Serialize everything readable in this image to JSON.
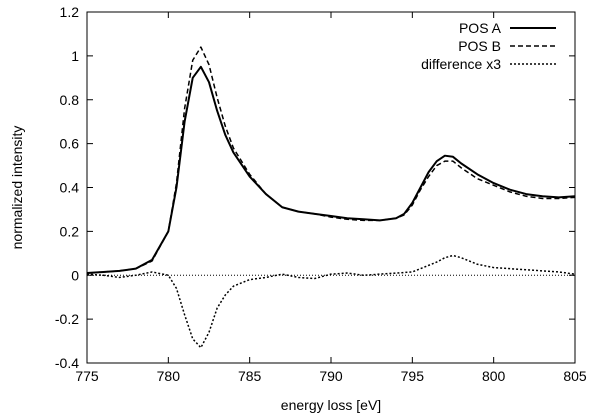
{
  "chart_data": {
    "type": "line",
    "title": "",
    "xlabel": "energy loss [eV]",
    "ylabel": "normalized intensity",
    "xlim": [
      775,
      805
    ],
    "ylim": [
      -0.4,
      1.2
    ],
    "xticks": [
      775,
      780,
      785,
      790,
      795,
      800,
      805
    ],
    "xtick_labels": [
      "775",
      "780",
      "785",
      "790",
      "795",
      "800",
      "805"
    ],
    "yticks": [
      -0.4,
      -0.2,
      0,
      0.2,
      0.4,
      0.6,
      0.8,
      1,
      1.2
    ],
    "ytick_labels": [
      "-0.4",
      "-0.2",
      "0",
      "0.2",
      "0.4",
      "0.6",
      "0.8",
      "1",
      "1.2"
    ],
    "grid": false,
    "legend_position": "top-right",
    "zero_line": true,
    "series": [
      {
        "name": "POS A",
        "style": "solid",
        "x": [
          775,
          776,
          777,
          778,
          779,
          780,
          780.5,
          781,
          781.5,
          782,
          782.5,
          783,
          783.5,
          784,
          785,
          786,
          787,
          788,
          789,
          790,
          791,
          792,
          793,
          794,
          794.5,
          795,
          795.5,
          796,
          796.5,
          797,
          797.5,
          798,
          799,
          800,
          801,
          802,
          803,
          804,
          805
        ],
        "y": [
          0.01,
          0.015,
          0.02,
          0.03,
          0.07,
          0.2,
          0.4,
          0.7,
          0.9,
          0.95,
          0.88,
          0.75,
          0.64,
          0.56,
          0.45,
          0.37,
          0.31,
          0.29,
          0.28,
          0.27,
          0.26,
          0.255,
          0.25,
          0.26,
          0.28,
          0.33,
          0.4,
          0.47,
          0.52,
          0.545,
          0.54,
          0.51,
          0.46,
          0.42,
          0.39,
          0.37,
          0.36,
          0.355,
          0.36
        ]
      },
      {
        "name": "POS B",
        "style": "dashed",
        "x": [
          775,
          776,
          777,
          778,
          779,
          780,
          780.5,
          781,
          781.5,
          782,
          782.5,
          783,
          783.5,
          784,
          785,
          786,
          787,
          788,
          789,
          790,
          791,
          792,
          793,
          794,
          794.5,
          795,
          795.5,
          796,
          796.5,
          797,
          797.5,
          798,
          799,
          800,
          801,
          802,
          803,
          804,
          805
        ],
        "y": [
          0.01,
          0.015,
          0.02,
          0.03,
          0.065,
          0.2,
          0.42,
          0.76,
          0.98,
          1.04,
          0.96,
          0.81,
          0.68,
          0.58,
          0.46,
          0.37,
          0.31,
          0.29,
          0.28,
          0.265,
          0.255,
          0.25,
          0.25,
          0.26,
          0.275,
          0.32,
          0.39,
          0.45,
          0.5,
          0.52,
          0.52,
          0.49,
          0.44,
          0.41,
          0.38,
          0.36,
          0.35,
          0.35,
          0.355
        ]
      },
      {
        "name": "difference x3",
        "style": "dotted",
        "x": [
          775,
          776,
          777,
          778,
          779,
          780,
          780.5,
          781,
          781.5,
          782,
          782.5,
          783,
          783.5,
          784,
          785,
          786,
          787,
          788,
          789,
          790,
          791,
          792,
          793,
          794,
          795,
          795.5,
          796,
          796.5,
          797,
          797.5,
          798,
          799,
          800,
          801,
          802,
          803,
          804,
          805
        ],
        "y": [
          0.005,
          0.0,
          -0.01,
          0.0,
          0.015,
          0.0,
          -0.06,
          -0.18,
          -0.29,
          -0.33,
          -0.26,
          -0.15,
          -0.09,
          -0.05,
          -0.02,
          -0.01,
          0.005,
          -0.01,
          -0.015,
          0.005,
          0.01,
          0.0,
          0.005,
          0.01,
          0.015,
          0.03,
          0.045,
          0.06,
          0.08,
          0.09,
          0.08,
          0.05,
          0.035,
          0.03,
          0.025,
          0.02,
          0.015,
          0.005
        ]
      }
    ]
  }
}
